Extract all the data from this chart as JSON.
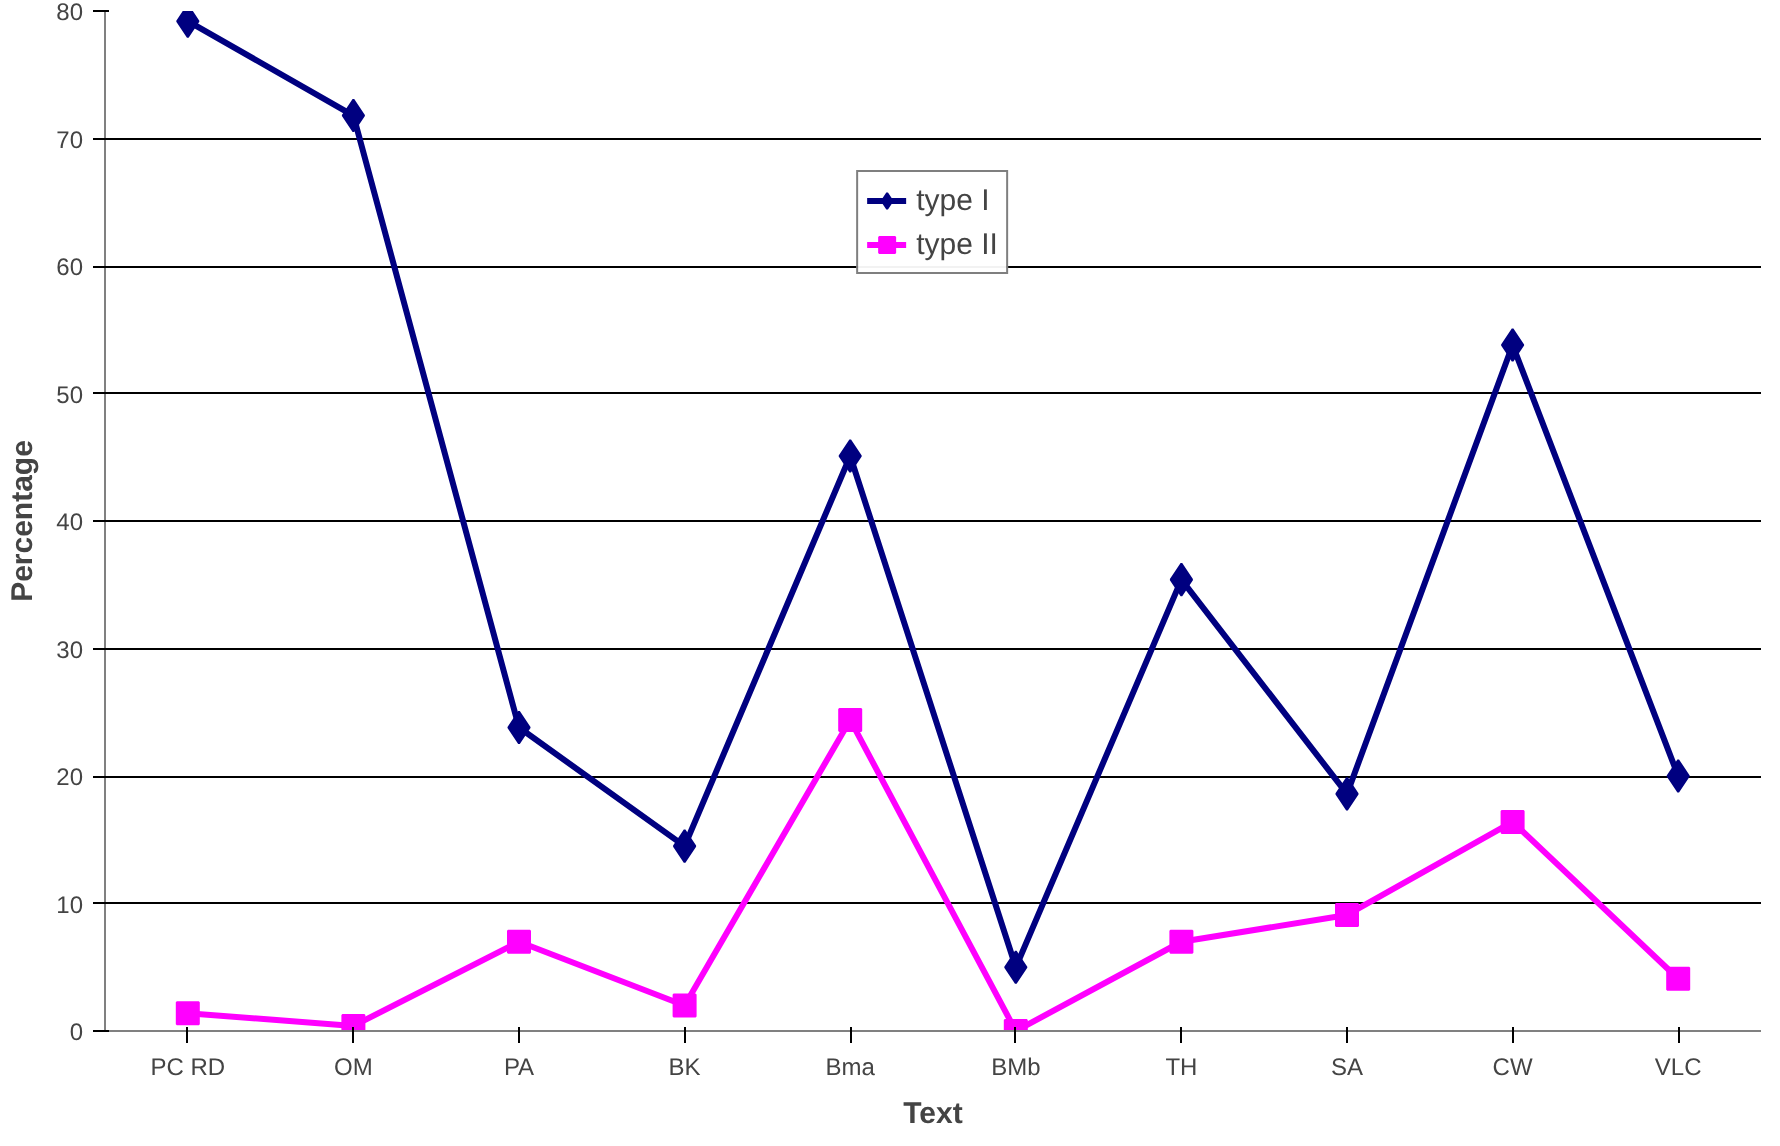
{
  "chart_data": {
    "type": "line",
    "xlabel": "Text",
    "ylabel": "Percentage",
    "categories": [
      "PC RD",
      "OM",
      "PA",
      "BK",
      "Bma",
      "BMb",
      "TH",
      "SA",
      "CW",
      "VLC"
    ],
    "series": [
      {
        "name": "type I",
        "color": "#000080",
        "marker": "diamond",
        "values": [
          79.2,
          71.8,
          23.8,
          14.5,
          45.1,
          5.0,
          35.4,
          18.6,
          53.8,
          20.0
        ]
      },
      {
        "name": "type II",
        "color": "#ff00ff",
        "marker": "square",
        "values": [
          1.4,
          0.4,
          7.0,
          2.0,
          24.4,
          0.0,
          7.0,
          9.1,
          16.4,
          4.1
        ]
      }
    ],
    "ylim": [
      0,
      80
    ],
    "yticks": [
      0,
      10,
      20,
      30,
      40,
      50,
      60,
      70,
      80
    ],
    "grid": "y",
    "legend": "top",
    "line_style": "solid"
  }
}
